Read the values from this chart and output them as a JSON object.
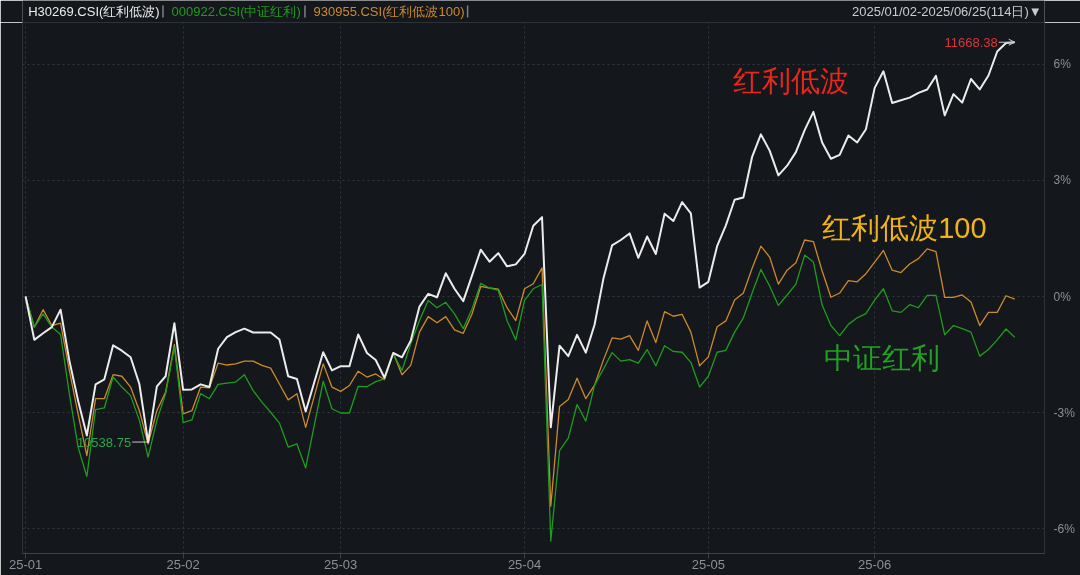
{
  "chart_data": {
    "type": "line",
    "subtitle": "2025/01/02-2025/06/25(114日)▼",
    "categories": [
      "25-01",
      null,
      null,
      null,
      null,
      null,
      null,
      null,
      null,
      null,
      null,
      null,
      null,
      null,
      null,
      null,
      null,
      null,
      "25-02",
      null,
      null,
      null,
      null,
      null,
      null,
      null,
      null,
      null,
      null,
      null,
      null,
      null,
      null,
      null,
      null,
      null,
      "25-03",
      null,
      null,
      null,
      null,
      null,
      null,
      null,
      null,
      null,
      null,
      null,
      null,
      null,
      null,
      null,
      null,
      null,
      null,
      null,
      null,
      "25-04",
      null,
      null,
      null,
      null,
      null,
      null,
      null,
      null,
      null,
      null,
      null,
      null,
      null,
      null,
      null,
      null,
      null,
      null,
      null,
      null,
      "25-05",
      null,
      null,
      null,
      null,
      null,
      null,
      null,
      null,
      null,
      null,
      null,
      null,
      null,
      null,
      null,
      null,
      null,
      null,
      "25-06",
      null,
      null,
      null,
      null,
      null,
      null,
      null,
      null,
      null,
      null,
      null,
      null,
      null,
      null,
      null,
      null
    ],
    "ylim": [
      -6.64,
      7.08
    ],
    "yticks": [
      {
        "value": -6,
        "label": "-6%"
      },
      {
        "value": -3,
        "label": "-3%"
      },
      {
        "value": 0,
        "label": "0%"
      },
      {
        "value": 3,
        "label": "3%"
      },
      {
        "value": 6,
        "label": "6%"
      }
    ],
    "grid": true,
    "series": [
      {
        "name": "H30269.CSI(红利低波)",
        "color": "#ececec",
        "values": [
          0,
          -1.12,
          -0.95,
          -0.79,
          -0.34,
          -1.65,
          -2.69,
          -3.59,
          -2.27,
          -2.14,
          -1.26,
          -1.4,
          -1.57,
          -2.26,
          -3.76,
          -2.32,
          -2.06,
          -0.69,
          -2.41,
          -2.4,
          -2.27,
          -2.34,
          -1.35,
          -1.05,
          -0.92,
          -0.83,
          -0.93,
          -0.93,
          -0.93,
          -1.11,
          -2.06,
          -2.13,
          -2.97,
          -2.2,
          -1.44,
          -1.91,
          -1.8,
          -1.8,
          -0.98,
          -1.46,
          -1.64,
          -2.1,
          -1.46,
          -1.57,
          -1.14,
          -0.26,
          0.07,
          -0.02,
          0.6,
          0.2,
          -0.12,
          0.54,
          1.21,
          0.9,
          1.12,
          0.78,
          0.83,
          1.1,
          1.83,
          2.05,
          -3.38,
          -1.27,
          -1.54,
          -0.99,
          -1.45,
          -0.73,
          0.45,
          1.32,
          1.46,
          1.63,
          1.0,
          1.55,
          1.1,
          2.14,
          1.95,
          2.44,
          2.15,
          0.23,
          0.38,
          1.3,
          1.84,
          2.5,
          2.56,
          3.61,
          4.19,
          3.77,
          3.13,
          3.38,
          3.73,
          4.3,
          4.77,
          3.98,
          3.56,
          3.66,
          4.16,
          3.98,
          4.32,
          5.39,
          5.82,
          5.0,
          5.07,
          5.14,
          5.26,
          5.35,
          5.7,
          4.68,
          5.23,
          5.01,
          5.62,
          5.35,
          5.71,
          6.33,
          6.55,
          6.57
        ]
      },
      {
        "name": "000922.CSI(中证红利)",
        "color": "#1f9c1f",
        "values": [
          0,
          -0.79,
          -0.45,
          -0.79,
          -0.98,
          -2.51,
          -3.89,
          -4.65,
          -2.92,
          -2.88,
          -2.08,
          -2.34,
          -2.56,
          -3.2,
          -4.15,
          -3.2,
          -2.51,
          -1.31,
          -3.26,
          -3.19,
          -2.51,
          -2.64,
          -2.27,
          -2.24,
          -2.21,
          -2.02,
          -2.43,
          -2.73,
          -2.99,
          -3.27,
          -3.89,
          -3.81,
          -4.43,
          -3.31,
          -2.19,
          -2.9,
          -3.01,
          -3.01,
          -2.32,
          -2.33,
          -2.2,
          -2.13,
          -1.48,
          -1.91,
          -1.22,
          -0.62,
          -0.1,
          -0.29,
          -0.15,
          -0.45,
          -0.83,
          -0.32,
          0.34,
          0.22,
          0.16,
          -0.62,
          -1.12,
          -0.1,
          0.2,
          0.31,
          -6.32,
          -3.98,
          -3.66,
          -2.79,
          -3.22,
          -2.29,
          -1.88,
          -1.45,
          -1.67,
          -1.63,
          -1.72,
          -1.37,
          -1.79,
          -1.27,
          -1.42,
          -1.44,
          -1.7,
          -2.34,
          -2.06,
          -1.44,
          -1.39,
          -0.92,
          -0.55,
          0.09,
          0.7,
          0.27,
          -0.23,
          0.04,
          0.32,
          1.07,
          0.89,
          -0.22,
          -0.75,
          -1.01,
          -0.72,
          -0.55,
          -0.44,
          -0.09,
          0.2,
          -0.37,
          -0.41,
          -0.21,
          -0.29,
          0.03,
          0.03,
          -0.99,
          -0.75,
          -0.83,
          -0.92,
          -1.54,
          -1.37,
          -1.12,
          -0.84,
          -1.05
        ]
      },
      {
        "name": "930955.CSI(红利低波100)",
        "color": "#cc8a2c",
        "values": [
          0,
          -0.79,
          -0.34,
          -0.75,
          -0.69,
          -1.91,
          -3.03,
          -4.11,
          -2.64,
          -2.64,
          -2.02,
          -2.06,
          -2.34,
          -2.95,
          -3.81,
          -2.95,
          -2.47,
          -1.24,
          -3.03,
          -2.95,
          -2.34,
          -2.36,
          -1.72,
          -1.77,
          -1.74,
          -1.67,
          -1.67,
          -1.78,
          -1.85,
          -2.26,
          -2.67,
          -2.51,
          -3.38,
          -2.56,
          -1.74,
          -2.34,
          -2.45,
          -2.3,
          -1.93,
          -2.08,
          -2.0,
          -2.15,
          -1.46,
          -2.02,
          -1.78,
          -0.92,
          -0.52,
          -0.68,
          -0.52,
          -0.86,
          -0.95,
          -0.45,
          0.26,
          0.22,
          0.19,
          -0.29,
          -0.62,
          0.2,
          0.33,
          0.74,
          -5.42,
          -2.84,
          -2.66,
          -2.11,
          -2.64,
          -2.29,
          -1.65,
          -1.07,
          -1.1,
          -1.01,
          -1.39,
          -0.63,
          -1.19,
          -0.39,
          -0.51,
          -0.46,
          -0.92,
          -1.79,
          -1.56,
          -0.78,
          -0.63,
          -0.09,
          0.09,
          0.73,
          1.3,
          1.02,
          0.32,
          0.68,
          0.87,
          1.46,
          1.42,
          0.66,
          -0.02,
          0.09,
          0.41,
          0.38,
          0.59,
          0.89,
          1.19,
          0.68,
          0.62,
          0.84,
          0.98,
          1.23,
          1.16,
          -0.02,
          -0.02,
          0.04,
          -0.14,
          -0.75,
          -0.41,
          -0.41,
          0.02,
          -0.07
        ]
      }
    ],
    "annotations": [
      "红利低波",
      "红利低波100",
      "中证红利",
      "11668.38",
      "10538.75"
    ]
  }
}
